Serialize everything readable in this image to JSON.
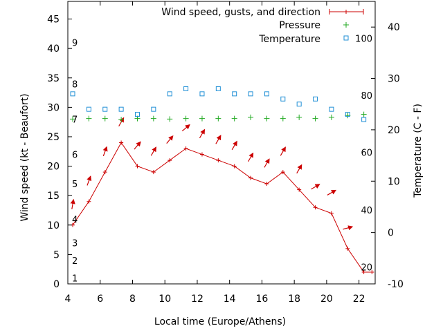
{
  "chart_data": {
    "type": "line",
    "xlabel": "Local time (Europe/Athens)",
    "ylabel_left": "Wind speed (kt - Beaufort)",
    "ylabel_right": "Temperature (C - F)",
    "xlim": [
      4,
      23
    ],
    "ylim_left": [
      0,
      48
    ],
    "ylim_right": [
      -10,
      45
    ],
    "x_ticks": [
      4,
      6,
      8,
      10,
      12,
      14,
      16,
      18,
      20,
      22
    ],
    "y_ticks_left": [
      0,
      5,
      10,
      15,
      20,
      25,
      30,
      35,
      40,
      45
    ],
    "y_ticks_right": [
      -10,
      0,
      10,
      20,
      30,
      40
    ],
    "beaufort_labels": [
      {
        "text": "1",
        "kt": 1
      },
      {
        "text": "2",
        "kt": 4
      },
      {
        "text": "3",
        "kt": 7
      },
      {
        "text": "4",
        "kt": 11
      },
      {
        "text": "5",
        "kt": 17
      },
      {
        "text": "6",
        "kt": 22
      },
      {
        "text": "7",
        "kt": 28
      },
      {
        "text": "8",
        "kt": 34
      },
      {
        "text": "9",
        "kt": 41
      }
    ],
    "fahrenheit_labels": [
      {
        "text": "20",
        "c": -6.7
      },
      {
        "text": "40",
        "c": 4.4
      },
      {
        "text": "60",
        "c": 15.6
      },
      {
        "text": "80",
        "c": 26.7
      },
      {
        "text": "100",
        "c": 37.8
      }
    ],
    "legend": [
      {
        "name": "Wind speed, gusts, and direction",
        "color": "#cc0000"
      },
      {
        "name": "Pressure",
        "color": "#22aa22"
      },
      {
        "name": "Temperature",
        "color": "#1f8fd6"
      }
    ],
    "wind_speed": {
      "x": [
        4.3,
        5.3,
        6.3,
        7.3,
        8.3,
        9.3,
        10.3,
        11.3,
        12.3,
        13.3,
        14.3,
        15.3,
        16.3,
        17.3,
        18.3,
        19.3,
        20.3,
        21.3,
        22.3,
        22.8
      ],
      "y": [
        10,
        14,
        19,
        24,
        20,
        19,
        21,
        23,
        22,
        21,
        20,
        18,
        17,
        19,
        16,
        13,
        12,
        6,
        2,
        2
      ]
    },
    "wind_arrows": {
      "x": [
        4.3,
        5.3,
        6.3,
        7.3,
        8.3,
        9.3,
        10.3,
        11.3,
        12.3,
        13.3,
        14.3,
        15.3,
        16.3,
        17.3,
        18.3,
        19.3,
        20.3,
        21.3
      ],
      "y": [
        13.5,
        17.5,
        22.5,
        27.5,
        23.5,
        22.5,
        24.5,
        26.5,
        25.5,
        24.5,
        23.5,
        21.5,
        20.5,
        22.5,
        19.5,
        16.5,
        15.5,
        9.5
      ],
      "dir_deg": [
        10,
        20,
        20,
        30,
        40,
        30,
        40,
        50,
        30,
        30,
        30,
        30,
        30,
        30,
        30,
        60,
        60,
        75
      ]
    },
    "pressure": {
      "x": [
        4.3,
        5.3,
        6.3,
        7.3,
        8.3,
        9.3,
        10.3,
        11.3,
        12.3,
        13.3,
        14.3,
        15.3,
        16.3,
        17.3,
        18.3,
        19.3,
        20.3,
        21.3,
        22.3
      ],
      "y": [
        28.0,
        28.1,
        28.1,
        27.9,
        28.1,
        28.1,
        28.0,
        28.1,
        28.1,
        28.1,
        28.1,
        28.3,
        28.1,
        28.1,
        28.3,
        28.1,
        28.3,
        28.6,
        28.8
      ]
    },
    "temperature": {
      "x": [
        4.3,
        5.3,
        6.3,
        7.3,
        8.3,
        9.3,
        10.3,
        11.3,
        12.3,
        13.3,
        14.3,
        15.3,
        16.3,
        17.3,
        18.3,
        19.3,
        20.3,
        21.3,
        22.3
      ],
      "y": [
        27,
        24,
        24,
        24,
        23,
        24,
        27,
        28,
        27,
        28,
        27,
        27,
        27,
        26,
        25,
        26,
        24,
        23,
        22
      ]
    }
  }
}
